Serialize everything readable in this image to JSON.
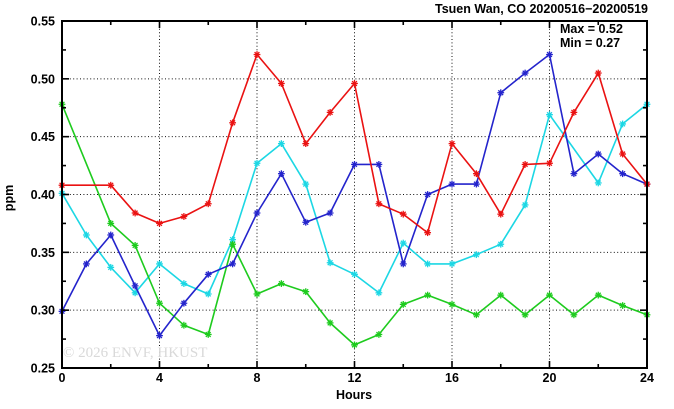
{
  "title": "Tsuen Wan, CO 20200516−20200519",
  "annotations": {
    "max_label": "Max = 0.52",
    "min_label": "Min = 0.27"
  },
  "watermark": "© 2026  ENVF, HKUST",
  "chart_data": {
    "type": "line",
    "title": "Tsuen Wan, CO 20200516−20200519",
    "xlabel": "Hours",
    "ylabel": "ppm",
    "xlim": [
      0,
      24
    ],
    "ylim": [
      0.25,
      0.55
    ],
    "x_major_ticks": [
      0,
      4,
      8,
      12,
      16,
      20,
      24
    ],
    "x_tick_labels": [
      "0",
      "4",
      "8",
      "12",
      "16",
      "20",
      "24"
    ],
    "x_minor_ticks": [
      2,
      6,
      10,
      14,
      18,
      22
    ],
    "y_major_ticks": [
      0.25,
      0.3,
      0.35,
      0.4,
      0.45,
      0.5,
      0.55
    ],
    "y_tick_labels": [
      "0.25",
      "0.30",
      "0.35",
      "0.40",
      "0.45",
      "0.50",
      "0.55"
    ],
    "y_minor_ticks": [
      0.275,
      0.325,
      0.375,
      0.425,
      0.475,
      0.525
    ],
    "grid": "dotted black at major ticks",
    "legend": "none",
    "max": 0.52,
    "min": 0.27,
    "x": [
      0,
      1,
      2,
      3,
      4,
      5,
      6,
      7,
      8,
      9,
      10,
      11,
      12,
      13,
      14,
      15,
      16,
      17,
      18,
      19,
      20,
      21,
      22,
      23,
      24
    ],
    "series": [
      {
        "name": "day-cyan",
        "color": "#1cd7e4",
        "values": [
          0.401,
          0.365,
          0.337,
          0.315,
          0.34,
          0.323,
          0.314,
          0.361,
          0.427,
          0.444,
          0.409,
          0.341,
          0.331,
          0.315,
          0.358,
          0.34,
          0.34,
          0.348,
          0.357,
          0.391,
          0.469,
          null,
          0.41,
          0.461,
          0.478
        ]
      },
      {
        "name": "day-green",
        "color": "#1ecb1e",
        "values": [
          0.478,
          null,
          0.375,
          0.356,
          0.306,
          0.287,
          0.279,
          0.357,
          0.314,
          0.323,
          0.316,
          0.289,
          0.27,
          0.279,
          0.305,
          0.313,
          0.305,
          0.296,
          0.313,
          0.296,
          0.313,
          0.296,
          0.313,
          0.304,
          0.296
        ]
      },
      {
        "name": "day-blue",
        "color": "#2424cc",
        "values": [
          0.299,
          0.34,
          0.365,
          0.321,
          0.278,
          0.306,
          0.331,
          0.34,
          0.384,
          0.418,
          0.376,
          0.384,
          0.426,
          0.426,
          0.34,
          0.4,
          0.409,
          0.409,
          0.488,
          0.505,
          0.521,
          0.418,
          0.435,
          0.418,
          0.409
        ]
      },
      {
        "name": "day-red",
        "color": "#ea1212",
        "values": [
          0.408,
          null,
          0.408,
          0.384,
          0.375,
          0.381,
          0.392,
          0.462,
          0.521,
          0.496,
          0.444,
          0.471,
          0.496,
          0.392,
          0.383,
          0.367,
          0.444,
          0.418,
          0.383,
          0.426,
          0.427,
          0.471,
          0.505,
          0.435,
          0.409
        ]
      }
    ]
  }
}
